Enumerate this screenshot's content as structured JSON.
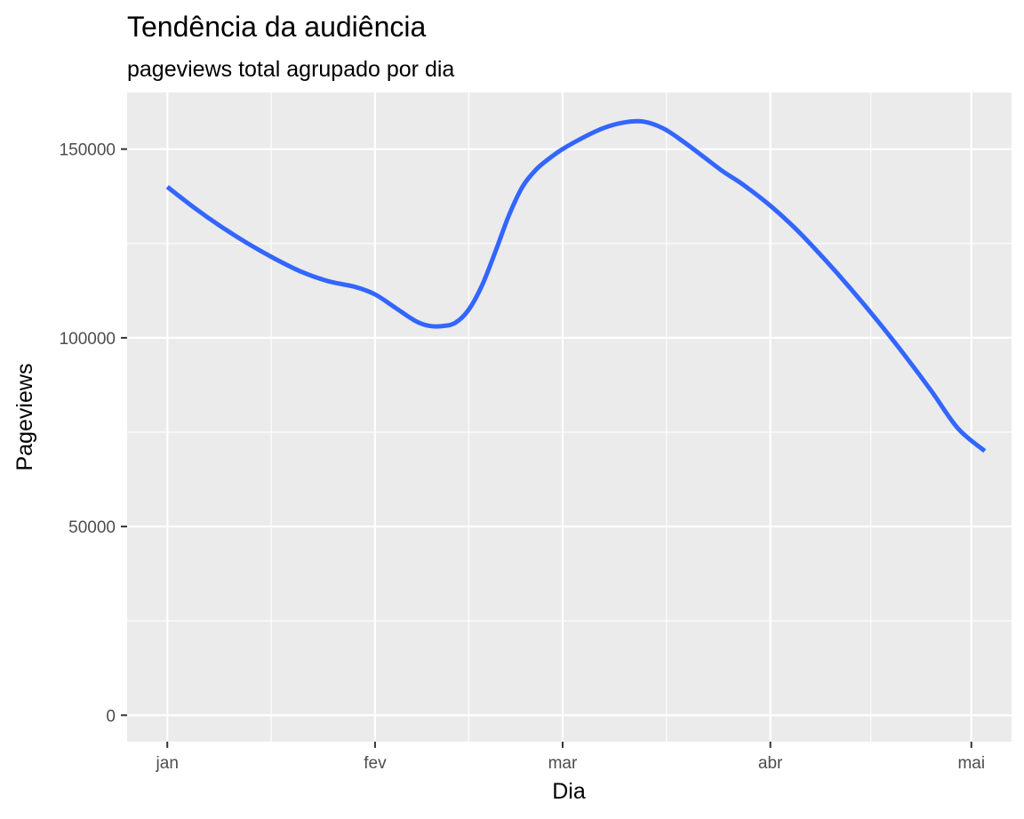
{
  "chart_data": {
    "type": "line",
    "title": "Tendência da audiência",
    "subtitle": "pageviews total agrupado por dia",
    "xlabel": "Dia",
    "ylabel": "Pageviews",
    "x_ticks": [
      {
        "label": "jan",
        "value": "2021-01-01"
      },
      {
        "label": "fev",
        "value": "2021-02-01"
      },
      {
        "label": "mar",
        "value": "2021-03-01"
      },
      {
        "label": "abr",
        "value": "2021-04-01"
      },
      {
        "label": "mai",
        "value": "2021-05-01"
      }
    ],
    "y_ticks": [
      0,
      50000,
      100000,
      150000
    ],
    "xlim": [
      "2020-12-26",
      "2021-05-07"
    ],
    "ylim": [
      -7000,
      165000
    ],
    "grid": true,
    "colors": {
      "line": "#3366ff",
      "panel": "#ebebeb",
      "grid": "#ffffff"
    },
    "series": [
      {
        "x": [
          "2021-01-01",
          "2021-01-05",
          "2021-01-09",
          "2021-01-13",
          "2021-01-17",
          "2021-01-21",
          "2021-01-25",
          "2021-01-29",
          "2021-02-01",
          "2021-02-04",
          "2021-02-07",
          "2021-02-09",
          "2021-02-11",
          "2021-02-13",
          "2021-02-15",
          "2021-02-17",
          "2021-02-19",
          "2021-02-21",
          "2021-02-23",
          "2021-02-25",
          "2021-02-27",
          "2021-03-01",
          "2021-03-04",
          "2021-03-07",
          "2021-03-10",
          "2021-03-13",
          "2021-03-16",
          "2021-03-19",
          "2021-03-22",
          "2021-03-25",
          "2021-03-28",
          "2021-04-01",
          "2021-04-05",
          "2021-04-09",
          "2021-04-13",
          "2021-04-17",
          "2021-04-21",
          "2021-04-25",
          "2021-04-29",
          "2021-05-03"
        ],
        "values": [
          140000,
          134500,
          129500,
          125000,
          121000,
          117500,
          115000,
          113500,
          111500,
          108000,
          104500,
          103200,
          103100,
          104000,
          107500,
          114000,
          123000,
          132500,
          140000,
          144500,
          147500,
          150000,
          153000,
          155500,
          157000,
          157300,
          155500,
          152000,
          148000,
          144000,
          140500,
          135000,
          128500,
          121000,
          113000,
          104500,
          95500,
          86000,
          76000,
          70000
        ]
      }
    ]
  }
}
